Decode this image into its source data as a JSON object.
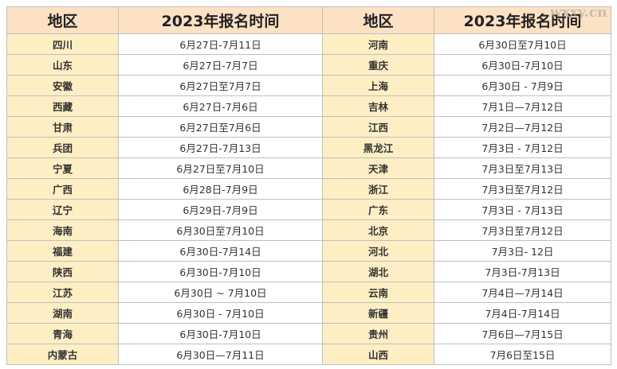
{
  "table": {
    "headers": [
      "地区",
      "2023年报名时间",
      "地区",
      "2023年报名时间"
    ],
    "rows": [
      [
        {
          "region": "四川",
          "period": "6月27日-7月11日"
        },
        {
          "region": "河南",
          "period": "6月30日至7月10日"
        }
      ],
      [
        {
          "region": "山东",
          "period": "6月27日-7月7日"
        },
        {
          "region": "重庆",
          "period": "6月30日-7月10日"
        }
      ],
      [
        {
          "region": "安徽",
          "period": "6月27日至7月7日"
        },
        {
          "region": "上海",
          "period": "6月30日 - 7月9日"
        }
      ],
      [
        {
          "region": "西藏",
          "period": "6月27日-7月6日"
        },
        {
          "region": "吉林",
          "period": "7月1日—7月12日"
        }
      ],
      [
        {
          "region": "甘肃",
          "period": "6月27日至7月6日"
        },
        {
          "region": "江西",
          "period": "7月2日—7月12日"
        }
      ],
      [
        {
          "region": "兵团",
          "period": "6月27日-7月13日"
        },
        {
          "region": "黑龙江",
          "period": "7月3日 - 7月12日"
        }
      ],
      [
        {
          "region": "宁夏",
          "period": "6月27日至7月10日"
        },
        {
          "region": "天津",
          "period": "7月3日至7月13日"
        }
      ],
      [
        {
          "region": "广西",
          "period": "6月28日-7月9日"
        },
        {
          "region": "浙江",
          "period": "7月3日至7月12日"
        }
      ],
      [
        {
          "region": "辽宁",
          "period": "6月29日-7月9日"
        },
        {
          "region": "广东",
          "period": "7月3日 - 7月13日"
        }
      ],
      [
        {
          "region": "海南",
          "period": "6月30日至7月10日"
        },
        {
          "region": "北京",
          "period": "7月3日至7月12日"
        }
      ],
      [
        {
          "region": "福建",
          "period": "6月30日-7月14日"
        },
        {
          "region": "河北",
          "period": "7月3日- 12日"
        }
      ],
      [
        {
          "region": "陕西",
          "period": "6月30日-7月10日"
        },
        {
          "region": "湖北",
          "period": "7月3日-7月13日"
        }
      ],
      [
        {
          "region": "江苏",
          "period": "6月30日 ~ 7月10日"
        },
        {
          "region": "云南",
          "period": "7月4日—7月14日"
        }
      ],
      [
        {
          "region": "湖南",
          "period": "6月30日 - 7月10日"
        },
        {
          "region": "新疆",
          "period": "7月4日-7月14日"
        }
      ],
      [
        {
          "region": "青海",
          "period": "6月30日-7月10日"
        },
        {
          "region": "贵州",
          "period": "7月6日—7月15日"
        }
      ],
      [
        {
          "region": "内蒙古",
          "period": "6月30日—7月11日"
        },
        {
          "region": "山西",
          "period": "7月6日至15日"
        }
      ]
    ]
  },
  "watermark": "wxxy.cn",
  "colors": {
    "header_bg": "#fce1c4",
    "region_bg": "#fdeec4",
    "border": "#bfbfbf"
  }
}
